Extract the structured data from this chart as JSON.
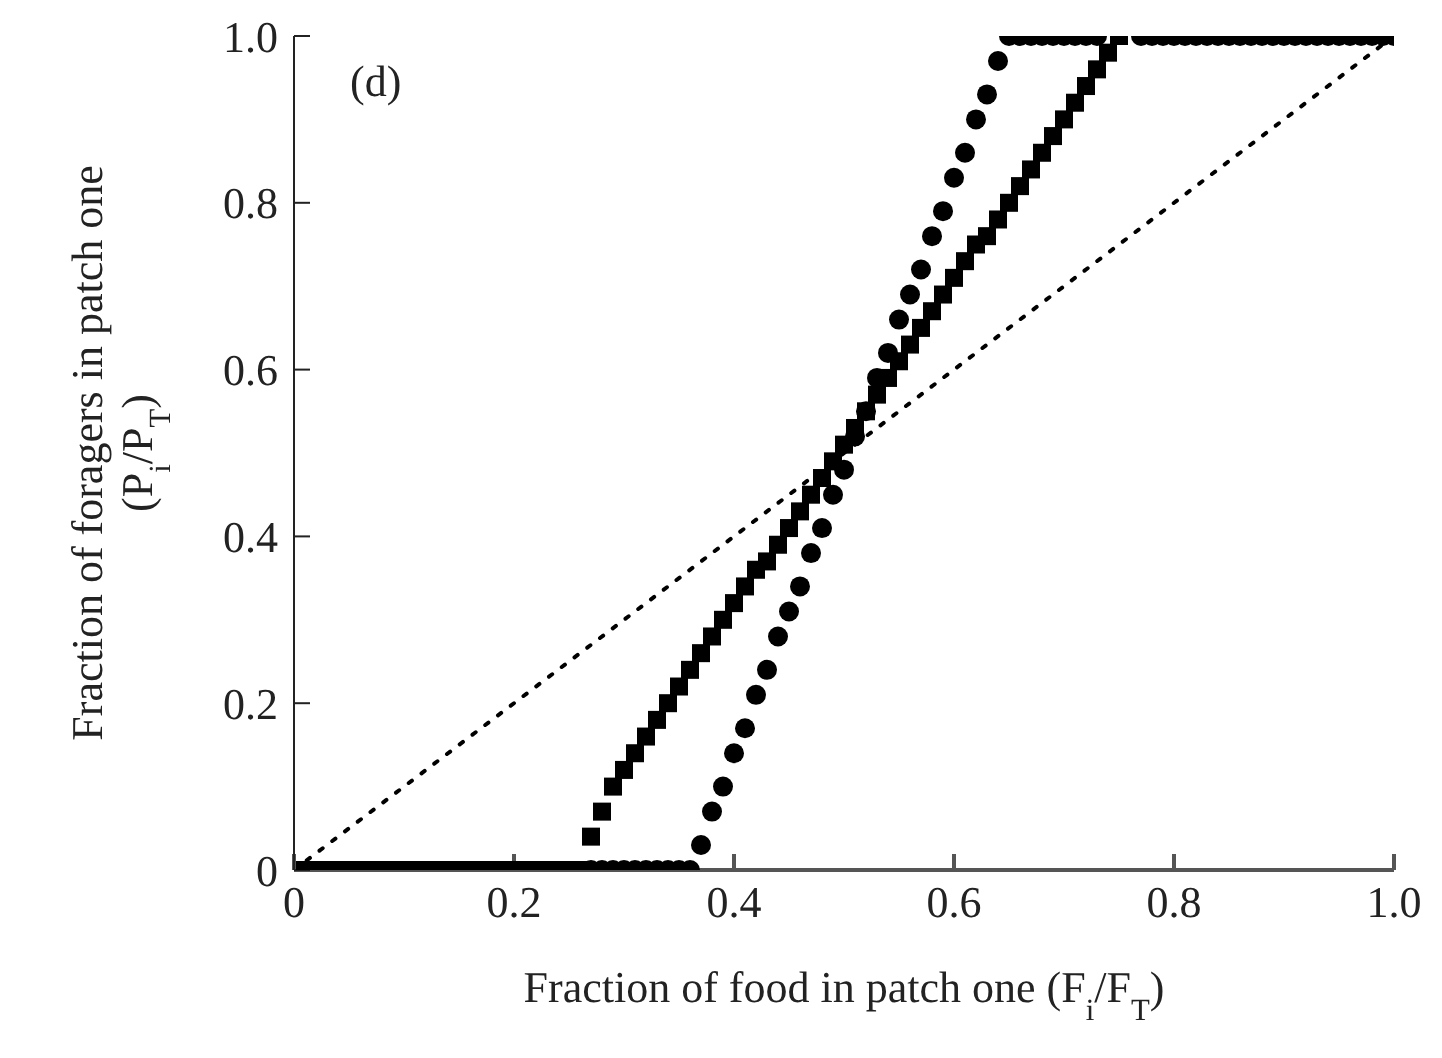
{
  "chart_data": {
    "type": "scatter",
    "xlabel": "Fraction of food in patch one (F$_{i}$/F$_{T}$)",
    "ylabel": "Fraction of foragers in patch one\n(P$_{i}$/P$_{T}$)",
    "annotations": [
      "(d)"
    ],
    "series": [
      {
        "type": "line",
        "color": "#000000",
        "line_style": "dotted",
        "marker": "none",
        "x": [
          0,
          1
        ],
        "values": [
          0,
          1
        ]
      },
      {
        "color": "#000000",
        "marker": "circle",
        "x": [
          0.27,
          0.28,
          0.29,
          0.3,
          0.31,
          0.32,
          0.33,
          0.34,
          0.35,
          0.36,
          0.37,
          0.38,
          0.39,
          0.4,
          0.41,
          0.42,
          0.43,
          0.44,
          0.45,
          0.46,
          0.47,
          0.48,
          0.49,
          0.5,
          0.51,
          0.52,
          0.53,
          0.54,
          0.55,
          0.56,
          0.57,
          0.58,
          0.59,
          0.6,
          0.61,
          0.62,
          0.63,
          0.64,
          0.65,
          0.66,
          0.67,
          0.68,
          0.69,
          0.7,
          0.71,
          0.72,
          0.73,
          0.74,
          0.75,
          0.76,
          0.77,
          0.78,
          0.79,
          0.8,
          0.81,
          0.82,
          0.83,
          0.84,
          0.85,
          0.86,
          0.87,
          0.88,
          0.89,
          0.9,
          0.91,
          0.92,
          0.93,
          0.94,
          0.95,
          0.96,
          0.97,
          0.98,
          0.99,
          1.0
        ],
        "values": [
          0,
          0,
          0,
          0,
          0,
          0,
          0,
          0,
          0,
          0,
          0.03,
          0.07,
          0.1,
          0.14,
          0.17,
          0.21,
          0.24,
          0.28,
          0.31,
          0.34,
          0.38,
          0.41,
          0.45,
          0.48,
          0.52,
          0.55,
          0.59,
          0.62,
          0.66,
          0.69,
          0.72,
          0.76,
          0.79,
          0.83,
          0.86,
          0.9,
          0.93,
          0.97,
          1,
          1,
          1,
          1,
          1,
          1,
          1,
          1,
          1,
          null,
          null,
          null,
          1,
          1,
          1,
          1,
          1,
          1,
          1,
          1,
          1,
          1,
          1,
          1,
          1,
          1,
          1,
          1,
          1,
          1,
          1,
          1,
          1,
          1,
          1,
          1
        ]
      },
      {
        "color": "#000000",
        "marker": "square",
        "x": [
          0.01,
          0.02,
          0.03,
          0.04,
          0.05,
          0.06,
          0.07,
          0.08,
          0.09,
          0.1,
          0.11,
          0.12,
          0.13,
          0.14,
          0.15,
          0.16,
          0.17,
          0.18,
          0.19,
          0.2,
          0.21,
          0.22,
          0.23,
          0.24,
          0.25,
          0.26,
          0.27,
          0.28,
          0.29,
          0.3,
          0.31,
          0.32,
          0.33,
          0.34,
          0.35,
          0.36,
          0.37,
          0.38,
          0.39,
          0.4,
          0.41,
          0.42,
          0.43,
          0.44,
          0.45,
          0.46,
          0.47,
          0.48,
          0.49,
          0.5,
          0.51,
          0.52,
          0.53,
          0.54,
          0.55,
          0.56,
          0.57,
          0.58,
          0.59,
          0.6,
          0.61,
          0.62,
          0.63,
          0.64,
          0.65,
          0.66,
          0.67,
          0.68,
          0.69,
          0.7,
          0.71,
          0.72,
          0.73,
          0.74,
          0.75
        ],
        "values": [
          0,
          0,
          0,
          0,
          0,
          0,
          0,
          0,
          0,
          0,
          0,
          0,
          0,
          0,
          0,
          0,
          0,
          0,
          0,
          0,
          0,
          0,
          0,
          0,
          0,
          0,
          0.04,
          0.07,
          0.1,
          0.12,
          0.14,
          0.16,
          0.18,
          0.2,
          0.22,
          0.24,
          0.26,
          0.28,
          0.3,
          0.32,
          0.34,
          0.36,
          0.37,
          0.39,
          0.41,
          0.43,
          0.45,
          0.47,
          0.49,
          0.51,
          0.53,
          0.55,
          0.57,
          0.59,
          0.61,
          0.63,
          0.65,
          0.67,
          0.69,
          0.71,
          0.73,
          0.75,
          0.76,
          0.78,
          0.8,
          0.82,
          0.84,
          0.86,
          0.88,
          0.9,
          0.92,
          0.94,
          0.96,
          0.98,
          1
        ]
      }
    ],
    "xlim": [
      0,
      1
    ],
    "ylim": [
      0,
      1
    ],
    "xticks": [
      0,
      0.2,
      0.4,
      0.6,
      0.8,
      {
        "value": 1,
        "label": "1.0"
      }
    ],
    "yticks": [
      0,
      0.2,
      0.4,
      0.6,
      0.8,
      {
        "value": 1,
        "label": "1.0"
      }
    ],
    "grid": false
  }
}
